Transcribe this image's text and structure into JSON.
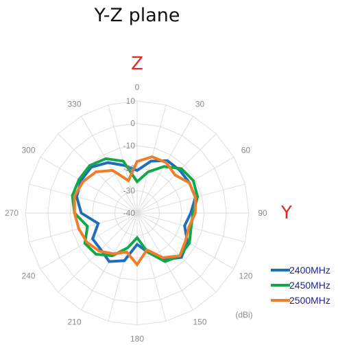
{
  "chart_data": {
    "type": "radar",
    "title": "Y-Z plane",
    "axis_labels": {
      "top": "Z",
      "right": "Y"
    },
    "unit": "(dBi)",
    "r_ticks": [
      10,
      0,
      -10,
      -20,
      -30,
      -40
    ],
    "r_range": [
      -40,
      10
    ],
    "angle_ticks": [
      0,
      30,
      60,
      90,
      120,
      150,
      180,
      210,
      240,
      270,
      300,
      330
    ],
    "angles": [
      0,
      15,
      30,
      45,
      60,
      75,
      90,
      105,
      120,
      135,
      150,
      165,
      180,
      195,
      210,
      225,
      240,
      255,
      270,
      285,
      300,
      315,
      330,
      345
    ],
    "grid": true,
    "legend_position": "bottom-right",
    "series": [
      {
        "name": "2400MHz",
        "color": "#1f6fb8",
        "values": [
          -21,
          -16,
          -13,
          -13,
          -13,
          -13,
          -16,
          -18,
          -14,
          -12,
          -16,
          -22,
          -26,
          -18,
          -15,
          -17,
          -17,
          -22,
          -15,
          -12,
          -11,
          -11,
          -14,
          -18
        ]
      },
      {
        "name": "2450MHz",
        "color": "#12a84a",
        "values": [
          -26,
          -21,
          -16,
          -12,
          -11,
          -12,
          -15,
          -15,
          -13,
          -13,
          -15,
          -22,
          -29,
          -24,
          -18,
          -14,
          -13,
          -17,
          -12,
          -10,
          -10,
          -10,
          -12,
          -16
        ]
      },
      {
        "name": "2500MHz",
        "color": "#f07d2a",
        "values": [
          -17,
          -14,
          -14,
          -16,
          -13,
          -13,
          -14,
          -16,
          -15,
          -13,
          -17,
          -23,
          -17,
          -22,
          -19,
          -16,
          -14,
          -13,
          -12,
          -11,
          -12,
          -14,
          -18,
          -25
        ]
      }
    ]
  }
}
